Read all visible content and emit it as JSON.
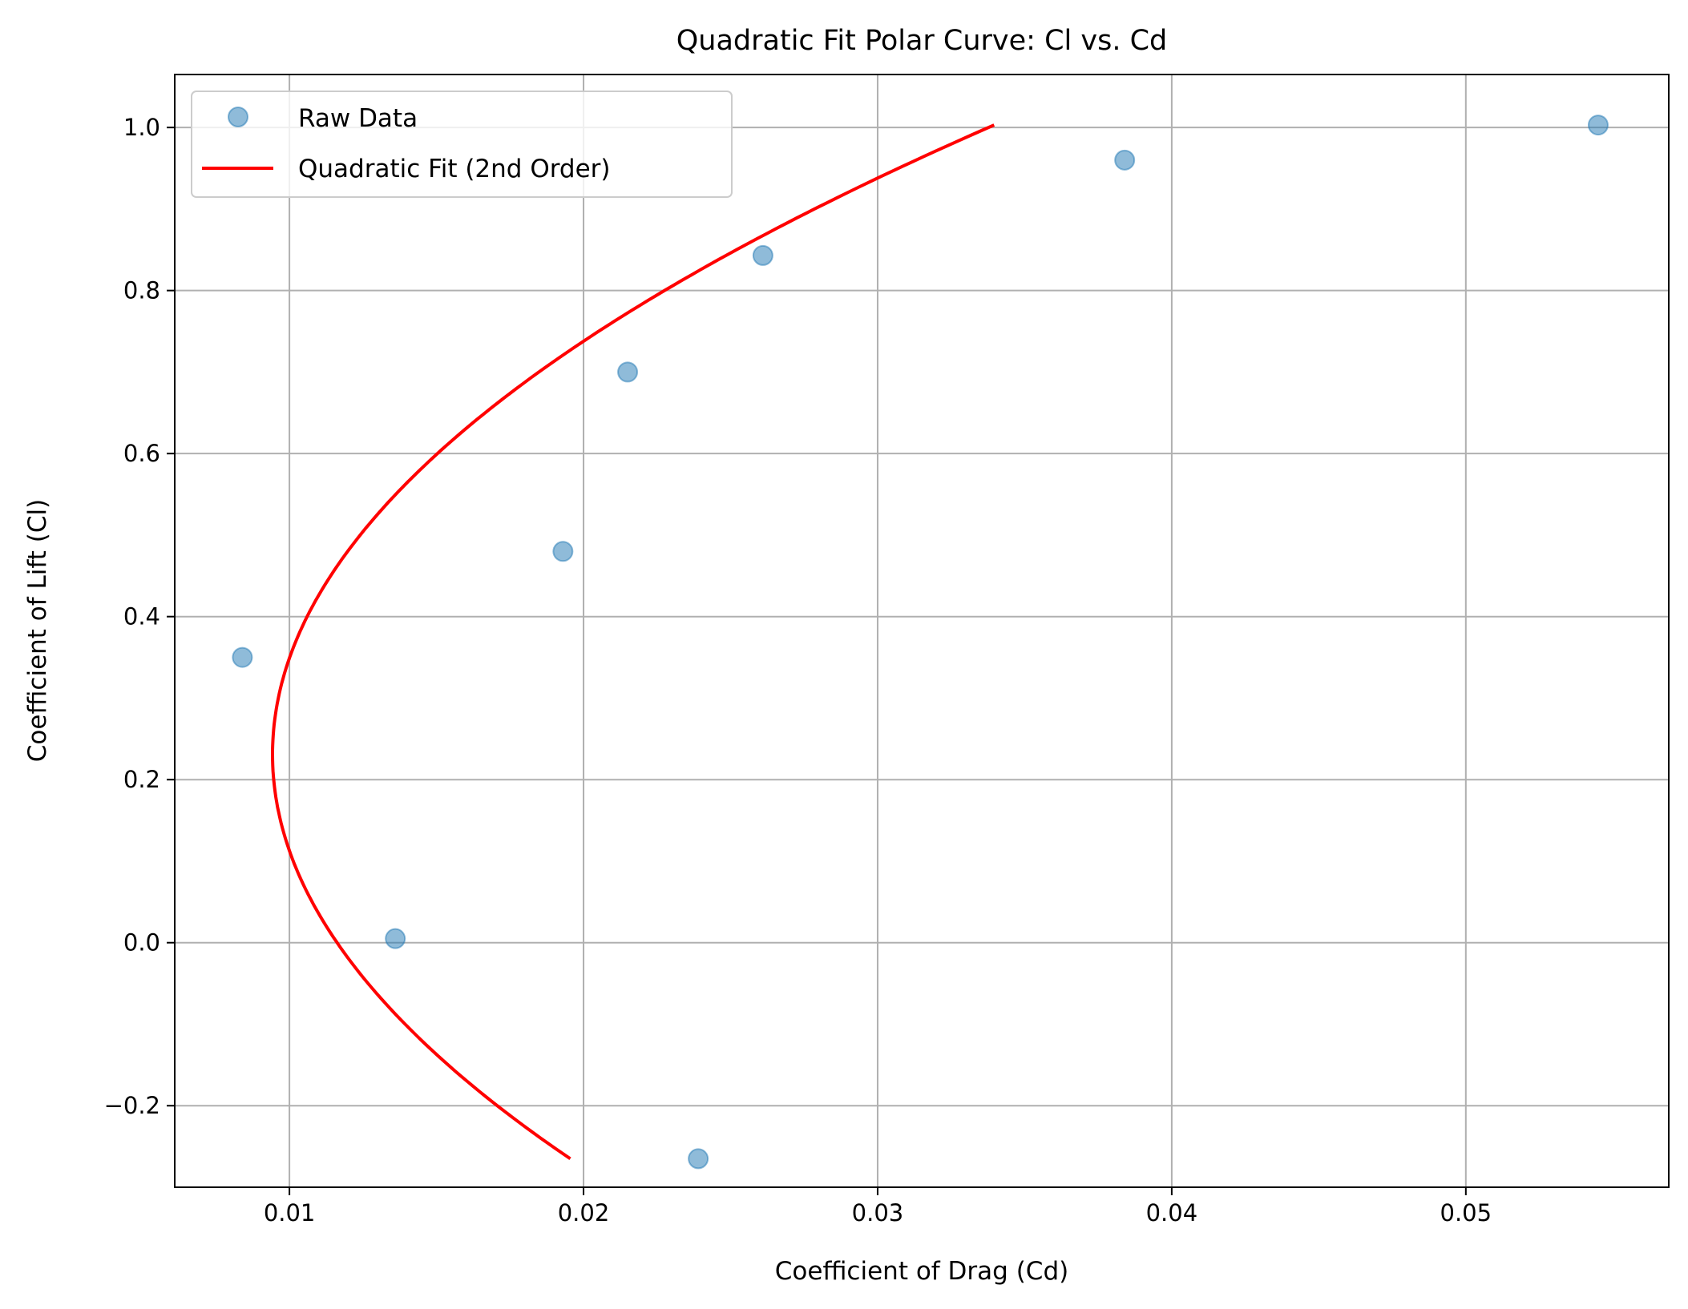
{
  "chart_data": {
    "type": "scatter",
    "title": "Quadratic Fit Polar Curve: Cl vs. Cd",
    "xlabel": "Coefficient of Drag (Cd)",
    "ylabel": "Coefficient of Lift (Cl)",
    "xlim": [
      0.0061,
      0.0569
    ],
    "ylim": [
      -0.3,
      1.065
    ],
    "xticks": [
      0.01,
      0.02,
      0.03,
      0.04,
      0.05
    ],
    "xtick_labels": [
      "0.01",
      "0.02",
      "0.03",
      "0.04",
      "0.05"
    ],
    "yticks": [
      -0.2,
      0.0,
      0.2,
      0.4,
      0.6,
      0.8,
      1.0
    ],
    "ytick_labels": [
      "−0.2",
      "0.0",
      "0.2",
      "0.4",
      "0.6",
      "0.8",
      "1.0"
    ],
    "grid": true,
    "legend_position": "top-left",
    "series": [
      {
        "name": "Raw Data",
        "kind": "scatter",
        "color": "#1f77b4",
        "alpha": 0.5,
        "points": [
          {
            "cd": 0.0084,
            "cl": 0.35
          },
          {
            "cd": 0.0136,
            "cl": 0.005
          },
          {
            "cd": 0.0193,
            "cl": 0.48
          },
          {
            "cd": 0.0215,
            "cl": 0.7
          },
          {
            "cd": 0.0239,
            "cl": -0.265
          },
          {
            "cd": 0.0261,
            "cl": 0.843
          },
          {
            "cd": 0.0384,
            "cl": 0.96
          },
          {
            "cd": 0.0545,
            "cl": 1.003
          }
        ]
      },
      {
        "name": "Quadratic Fit (2nd Order)",
        "kind": "line",
        "color": "#ff0000",
        "equation": "Cd = a + b*Cl + c*Cl^2",
        "coefficients": {
          "a": 0.01162,
          "b": -0.01901,
          "c": 0.04116
        },
        "cl_range": [
          -0.265,
          1.003
        ]
      }
    ]
  }
}
